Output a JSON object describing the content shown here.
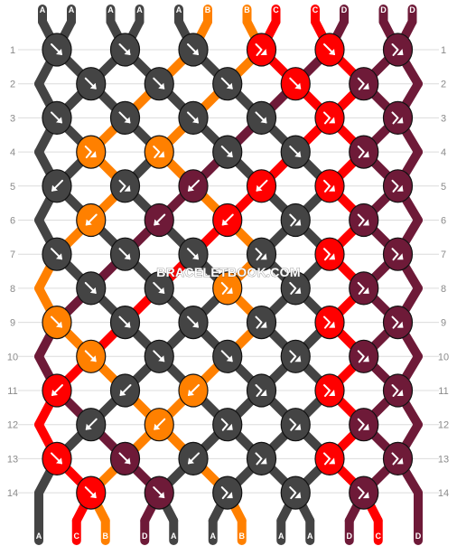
{
  "colors": {
    "A": "#444444",
    "B": "#ff8000",
    "C": "#ff0000",
    "D": "#6e1a38"
  },
  "strands": [
    "A",
    "A",
    "A",
    "A",
    "A",
    "B",
    "B",
    "C",
    "C",
    "D",
    "D",
    "D"
  ],
  "rows": [
    "1",
    "2",
    "3",
    "4",
    "5",
    "6",
    "7",
    "8",
    "9",
    "10",
    "11",
    "12",
    "13",
    "14"
  ],
  "watermark": "BRACELETBOOK.COM",
  "knots": [
    [
      "F",
      "F",
      "F",
      "BF",
      "F",
      "BF"
    ],
    [
      "F",
      "F",
      "F",
      "F",
      "BF"
    ],
    [
      "F",
      "F",
      "F",
      "F",
      "BF",
      "BF"
    ],
    [
      "BF",
      "BF",
      "F",
      "F",
      "BF"
    ],
    [
      "B",
      "BF",
      "B",
      "B",
      "BF",
      "BF"
    ],
    [
      "B",
      "B",
      "B",
      "BF",
      "BF"
    ],
    [
      "F",
      "F",
      "F",
      "BF",
      "BF",
      "BF"
    ],
    [
      "F",
      "F",
      "BF",
      "BF",
      "BF"
    ],
    [
      "F",
      "F",
      "F",
      "BF",
      "BF",
      "BF"
    ],
    [
      "F",
      "F",
      "F",
      "BF",
      "BF"
    ],
    [
      "B",
      "B",
      "B",
      "BF",
      "BF",
      "BF"
    ],
    [
      "B",
      "B",
      "BF",
      "BF",
      "BF"
    ],
    [
      "F",
      "F",
      "B",
      "BF",
      "BF",
      "BF"
    ],
    [
      "F",
      "F",
      "BF",
      "BF",
      "BF"
    ]
  ]
}
